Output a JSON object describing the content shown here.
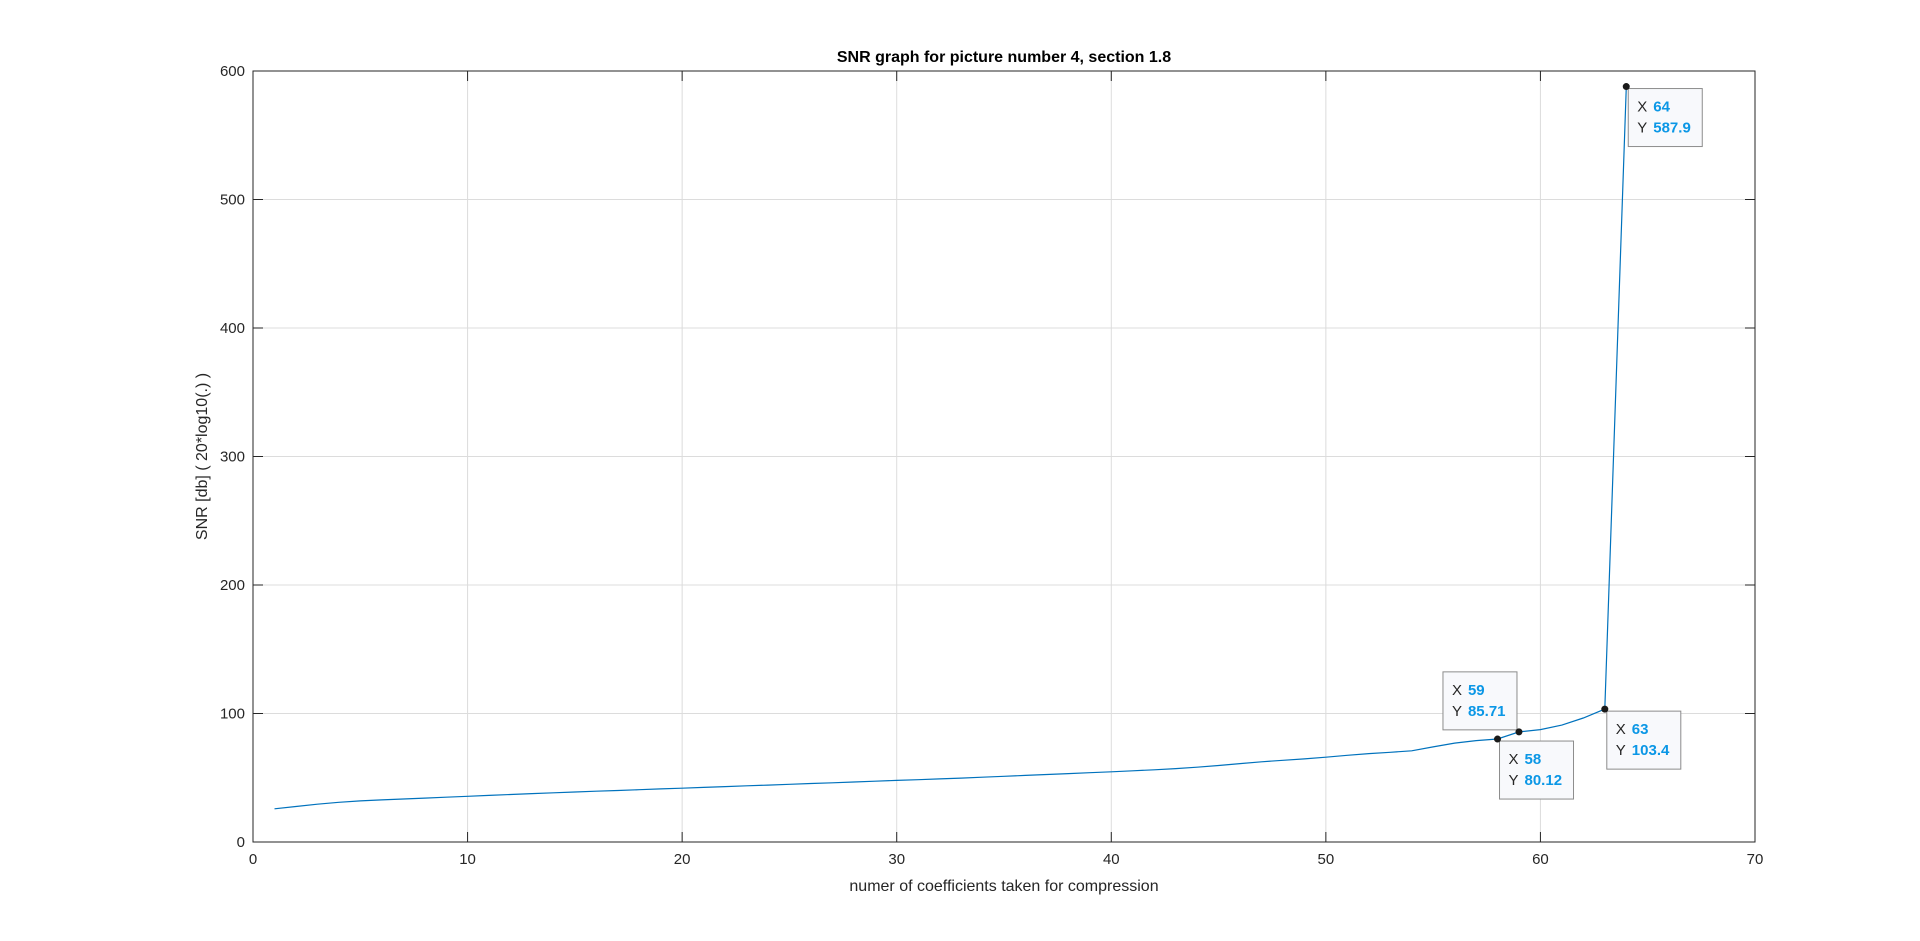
{
  "chart_data": {
    "type": "line",
    "title": "SNR graph for picture number 4, section 1.8",
    "xlabel": "numer of coefficients taken for compression",
    "ylabel": "SNR [db] ( 20*log10(.) )",
    "xlim": [
      0,
      70
    ],
    "ylim": [
      0,
      600
    ],
    "xticks": [
      0,
      10,
      20,
      30,
      40,
      50,
      60,
      70
    ],
    "yticks": [
      0,
      100,
      200,
      300,
      400,
      500,
      600
    ],
    "grid": true,
    "series": [
      {
        "color": "#0072bd",
        "x": [
          1,
          2,
          3,
          4,
          5,
          6,
          7,
          8,
          9,
          10,
          11,
          12,
          13,
          14,
          15,
          16,
          17,
          18,
          19,
          20,
          21,
          22,
          23,
          24,
          25,
          26,
          27,
          28,
          29,
          30,
          31,
          32,
          33,
          34,
          35,
          36,
          37,
          38,
          39,
          40,
          41,
          42,
          43,
          44,
          45,
          46,
          47,
          48,
          49,
          50,
          51,
          52,
          53,
          54,
          55,
          56,
          57,
          58,
          59,
          60,
          61,
          62,
          63,
          64
        ],
        "y": [
          25.8,
          27.6,
          29.4,
          30.9,
          32.0,
          32.8,
          33.5,
          34.2,
          34.9,
          35.6,
          36.3,
          37.0,
          37.7,
          38.3,
          38.9,
          39.5,
          40.1,
          40.7,
          41.3,
          41.9,
          42.5,
          43.1,
          43.7,
          44.3,
          44.9,
          45.5,
          46.1,
          46.7,
          47.3,
          47.9,
          48.5,
          49.1,
          49.7,
          50.4,
          51.1,
          51.8,
          52.5,
          53.2,
          53.9,
          54.6,
          55.4,
          56.2,
          57.1,
          58.2,
          59.5,
          61.0,
          62.4,
          63.6,
          64.7,
          66.0,
          67.5,
          68.8,
          69.8,
          71.0,
          74.0,
          77.0,
          78.9,
          80.12,
          85.71,
          87.5,
          91.0,
          96.5,
          103.4,
          587.9
        ]
      }
    ],
    "datatips": [
      {
        "x": "58",
        "y": "80.12"
      },
      {
        "x": "59",
        "y": "85.71"
      },
      {
        "x": "63",
        "y": "103.4"
      },
      {
        "x": "64",
        "y": "587.9"
      }
    ],
    "datatip_keys": {
      "x": "X",
      "y": "Y"
    }
  }
}
